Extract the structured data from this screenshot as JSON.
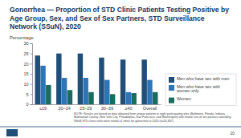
{
  "chart_data": {
    "type": "bar",
    "title": "Gonorrhea — Proportion of STD Clinic Patients Testing Positive by Age Group, Sex, and Sex of Sex Partners, STD Surveillance Network (SSuN), 2020",
    "y_label": "Percentage",
    "categories": [
      "≤19",
      "20–24",
      "25–29",
      "30–39",
      "≥40",
      "Overall"
    ],
    "series": [
      {
        "name": "Men who have sex with men",
        "color": "#1f4e79",
        "values": [
          24,
          25,
          25,
          23,
          22,
          22
        ]
      },
      {
        "name": "Men who have sex with women only",
        "color": "#2e75b6",
        "values": [
          19,
          13,
          13,
          12,
          6,
          12
        ]
      },
      {
        "name": "Women",
        "color": "#1b6b5e",
        "values": [
          9.5,
          7,
          6,
          5,
          5.5,
          6
        ]
      }
    ],
    "ylim": [
      0,
      30
    ],
    "yticks": [
      0,
      5,
      10,
      15,
      20,
      25,
      30
    ],
    "grid": false,
    "legend": "lower right",
    "annotations": [
      "NOTE: Results are based on data obtained from unique patients in eight participating sites (Baltimore, Florida, Indiana, Multnomah County, New York City, Philadelphia, San Francisco, and Washington) with known sex of sex partners attending SSuN STD clinics who were tested ≥1 times for gonorrhea in 2020 (n=55,807).",
      "20"
    ]
  }
}
